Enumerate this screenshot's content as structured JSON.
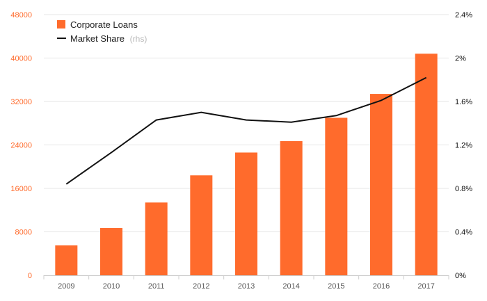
{
  "colors": {
    "bar": "#ff6b2c",
    "line": "#111111",
    "grid": "#e6e6e6",
    "left_axis_text": "#ff6b2c",
    "right_axis_text": "#111111"
  },
  "legend": {
    "bars_label": "Corporate Loans",
    "line_label": "Market Share",
    "line_note": "(rhs)"
  },
  "chart_data": {
    "type": "bar",
    "categories": [
      "2009",
      "2010",
      "2011",
      "2012",
      "2013",
      "2014",
      "2015",
      "2016",
      "2017"
    ],
    "series": [
      {
        "name": "Corporate Loans",
        "type": "bar",
        "axis": "left",
        "values": [
          5500,
          8700,
          13400,
          18400,
          22600,
          24700,
          29000,
          33400,
          40800
        ]
      },
      {
        "name": "Market Share",
        "type": "line",
        "axis": "right",
        "values": [
          0.84,
          1.13,
          1.43,
          1.5,
          1.43,
          1.41,
          1.47,
          1.61,
          1.82
        ]
      }
    ],
    "ylim_left": [
      0,
      48000
    ],
    "yticks_left": [
      0,
      8000,
      16000,
      24000,
      32000,
      40000,
      48000
    ],
    "ylim_right": [
      0,
      2.4
    ],
    "yticks_right": [
      "0%",
      "0.4%",
      "0.8%",
      "1.2%",
      "1.6%",
      "2%",
      "2.4%"
    ],
    "grid": true,
    "legend_position": "top-left"
  }
}
